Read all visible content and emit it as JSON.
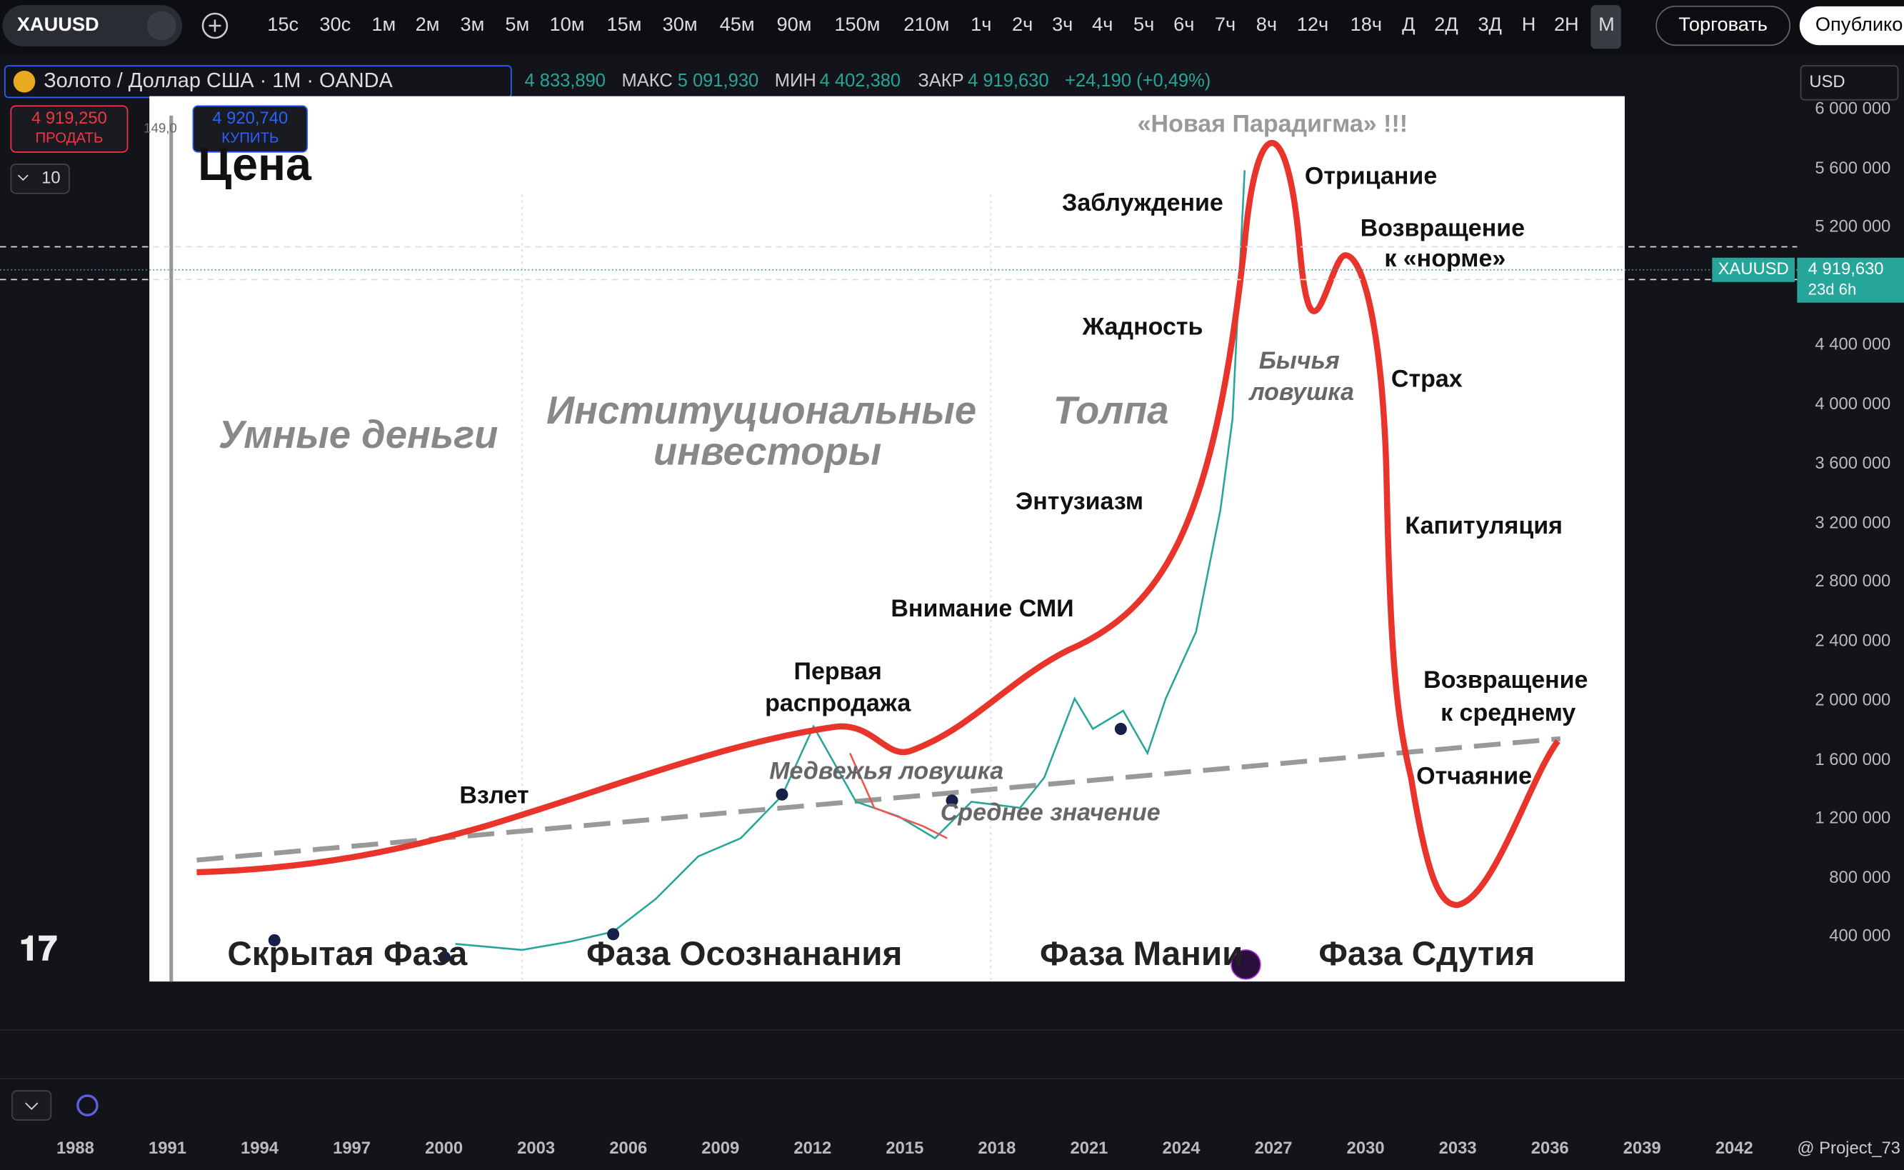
{
  "toolbar": {
    "symbol": "XAUUSD",
    "intervals": [
      "15с",
      "30с",
      "1м",
      "2м",
      "3м",
      "5м",
      "10м",
      "15м",
      "30м",
      "45м",
      "90м",
      "150м",
      "210м",
      "1ч",
      "2ч",
      "3ч",
      "4ч",
      "5ч",
      "6ч",
      "7ч",
      "8ч",
      "12ч",
      "18ч",
      "Д",
      "2Д",
      "3Д",
      "Н",
      "2Н",
      "М"
    ],
    "trade": "Торговать",
    "publish": "Опублико"
  },
  "legend": {
    "title": "Золото / Доллар США · 1М · OANDA",
    "open": "4 833,890",
    "high_label": "МАКС",
    "high": "5 091,930",
    "low_label": "МИН",
    "low": "4 402,380",
    "close_label": "ЗАКР",
    "close": "4 919,630",
    "change": "+24,190 (+0,49%)"
  },
  "order": {
    "sell_price": "4 919,250",
    "sell": "ПРОДАТЬ",
    "spread": "149,0",
    "buy_price": "4 920,740",
    "buy": "КУПИТЬ",
    "qty": "10"
  },
  "price_axis": {
    "currency": "USD",
    "labels": [
      "6 000 000",
      "5 600 000",
      "5 200 000",
      "4 400 000",
      "4 000 000",
      "3 600 000",
      "3 200 000",
      "2 800 000",
      "2 400 000",
      "2 000 000",
      "1 600 000",
      "1 200 000",
      "800 000",
      "400 000"
    ],
    "tag_symbol": "XAUUSD",
    "tag_price": "4 919,630",
    "tag_time": "23d 6h"
  },
  "time_axis": {
    "labels": [
      "1988",
      "1991",
      "1994",
      "1997",
      "2000",
      "2003",
      "2006",
      "2009",
      "2012",
      "2015",
      "2018",
      "2021",
      "2024",
      "2027",
      "2030",
      "2033",
      "2036",
      "2039",
      "2042"
    ]
  },
  "watermark": "@ Project_73",
  "overlay": {
    "title": "Цена",
    "paradigm": "«Новая Парадигма» !!!",
    "groups": [
      "Умные деньги",
      "Институциональные",
      "инвесторы",
      "Толпа"
    ],
    "stages": [
      "Взлет",
      "Первая",
      "распродажа",
      "Медвежья ловушка",
      "Среднее значение",
      "Внимание СМИ",
      "Энтузиазм",
      "Жадность",
      "Заблуждение",
      "Отрицание",
      "Бычья",
      "ловушка",
      "Возвращение",
      "к «норме»",
      "Страх",
      "Капитуляция",
      "Возвращение",
      "к среднему",
      "Отчаяние"
    ],
    "phases": [
      "Скрытая Фаза",
      "Фаза Осознанания",
      "Фаза Мании",
      "Фаза Сдутия"
    ]
  }
}
